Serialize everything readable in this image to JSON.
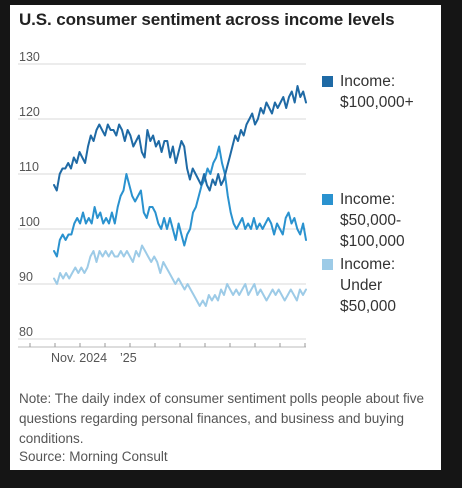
{
  "title": "U.S. consumer sentiment across income levels",
  "note": "Note: The daily index of consumer sentiment polls people about five questions regarding personal finances, and business and buying conditions.",
  "source": "Source: Morning Consult",
  "colors": {
    "high": "#1f6aa5",
    "mid": "#2a92cf",
    "low": "#9dcbe7",
    "grid": "#d8d8d8",
    "text": "#555555"
  },
  "chart_data": {
    "type": "line",
    "title": "U.S. consumer sentiment across income levels",
    "y_ticks": [
      80,
      90,
      100,
      110,
      120,
      130
    ],
    "ylim": [
      80,
      130
    ],
    "x_tick_labels": [
      "Nov. 2024",
      "’25"
    ],
    "grid": "horizontal",
    "legend": "right",
    "series": [
      {
        "name": "Income: $100,000+",
        "legend_lines": [
          "Income:",
          "$100,000+"
        ],
        "color": "#1f6aa5",
        "values": [
          108,
          107,
          110,
          111,
          111,
          112,
          111,
          113,
          112,
          114,
          113,
          112,
          115,
          117,
          116,
          118,
          119,
          118,
          117,
          119,
          118,
          118,
          117,
          119,
          118,
          116,
          118,
          117,
          115,
          116,
          117,
          114,
          113,
          118,
          116,
          117,
          115,
          116,
          114,
          116,
          116,
          113,
          115,
          112,
          114,
          116,
          115,
          111,
          109,
          111,
          110,
          109,
          108,
          110,
          108,
          107,
          109,
          108,
          110,
          108,
          109,
          111,
          113,
          115,
          117,
          116,
          118,
          117,
          119,
          120,
          121,
          119,
          120,
          122,
          121,
          123,
          122,
          121,
          123,
          122,
          123,
          124,
          122,
          124,
          125,
          123,
          126,
          124,
          125,
          123
        ]
      },
      {
        "name": "Income: $50,000-$100,000",
        "legend_lines": [
          "Income:",
          "$50,000-",
          "$100,000"
        ],
        "color": "#2a92cf",
        "values": [
          96,
          95,
          98,
          99,
          98,
          99,
          99,
          101,
          102,
          101,
          103,
          101,
          102,
          101,
          104,
          102,
          103,
          101,
          102,
          101,
          103,
          101,
          104,
          106,
          107,
          110,
          108,
          106,
          105,
          106,
          107,
          103,
          102,
          104,
          104,
          103,
          101,
          100,
          102,
          100,
          102,
          100,
          98,
          101,
          99,
          97,
          99,
          100,
          103,
          104,
          106,
          108,
          109,
          111,
          110,
          112,
          113,
          115,
          112,
          110,
          106,
          103,
          101,
          100,
          101,
          102,
          100,
          101,
          100,
          102,
          100,
          101,
          100,
          101,
          102,
          101,
          99,
          101,
          100,
          99,
          102,
          103,
          101,
          102,
          100,
          99,
          101,
          98
        ]
      },
      {
        "name": "Income: Under $50,000",
        "legend_lines": [
          "Income:",
          "Under",
          "$50,000"
        ],
        "color": "#9dcbe7",
        "values": [
          91,
          90,
          92,
          91,
          92,
          91,
          92,
          93,
          92,
          93,
          92,
          93,
          95,
          96,
          94,
          96,
          95,
          96,
          95,
          96,
          95,
          95,
          96,
          95,
          96,
          95,
          94,
          96,
          95,
          97,
          96,
          95,
          94,
          95,
          94,
          92,
          94,
          93,
          92,
          91,
          90,
          91,
          90,
          89,
          90,
          89,
          88,
          87,
          86,
          87,
          86,
          88,
          87,
          88,
          87,
          89,
          88,
          90,
          89,
          88,
          89,
          88,
          89,
          90,
          88,
          89,
          90,
          88,
          89,
          88,
          87,
          88,
          89,
          88,
          89,
          88,
          87,
          88,
          89,
          88,
          87,
          89,
          88,
          89
        ]
      }
    ]
  }
}
